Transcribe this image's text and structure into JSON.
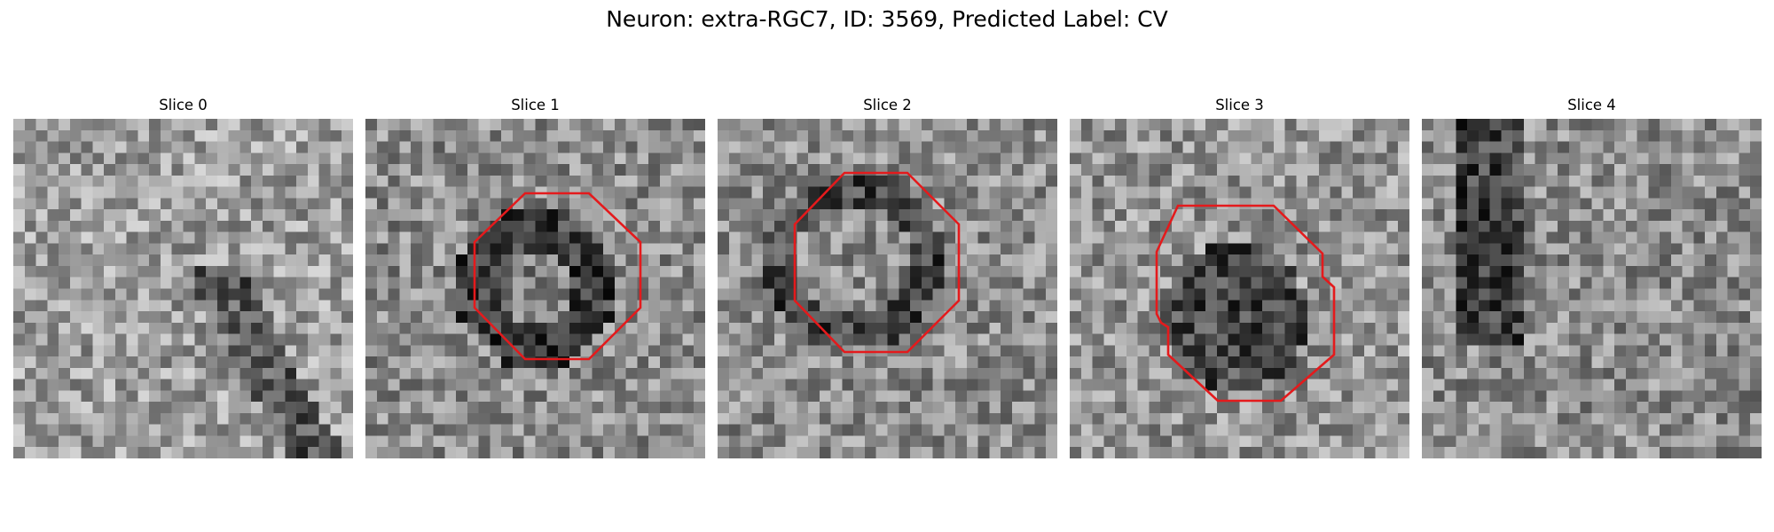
{
  "figure": {
    "title": "Neuron: extra-RGC7, ID: 3569, Predicted Label: CV"
  },
  "panels": [
    {
      "label": "Slice 0",
      "has_contour": false,
      "base": 0.62
    },
    {
      "label": "Slice 1",
      "has_contour": true,
      "base": 0.55
    },
    {
      "label": "Slice 2",
      "has_contour": true,
      "base": 0.55
    },
    {
      "label": "Slice 3",
      "has_contour": true,
      "base": 0.58
    },
    {
      "label": "Slice 4",
      "has_contour": false,
      "base": 0.55
    }
  ],
  "colors": {
    "contour": "#e41a1c",
    "background": "#ffffff"
  }
}
